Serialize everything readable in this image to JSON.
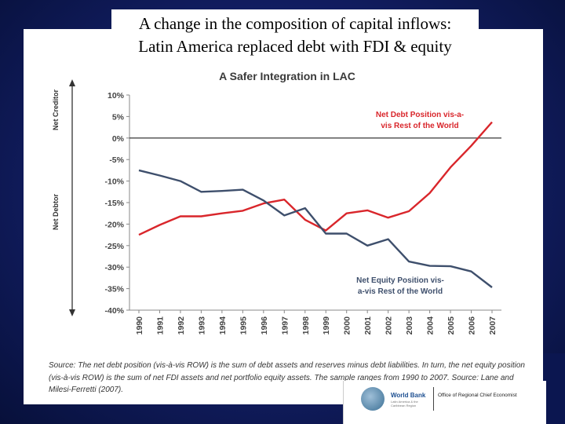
{
  "slide": {
    "title_line1": "A change in the composition of capital inflows:",
    "title_line2": "Latin America replaced debt with FDI & equity"
  },
  "chart_data": {
    "type": "line",
    "title": "A Safer Integration in LAC",
    "x": [
      1990,
      1991,
      1992,
      1993,
      1994,
      1995,
      1996,
      1997,
      1998,
      1999,
      2000,
      2001,
      2002,
      2003,
      2004,
      2005,
      2006,
      2007
    ],
    "yticks": [
      "10%",
      "5%",
      "0%",
      "-5%",
      "-10%",
      "-15%",
      "-20%",
      "-25%",
      "-30%",
      "-35%",
      "-40%"
    ],
    "ylim": [
      -40,
      10
    ],
    "xlim": [
      1990,
      2007
    ],
    "grid": false,
    "zero_line": true,
    "y_axis_labels": {
      "top": "Net Creditor",
      "bottom": "Net Debtor"
    },
    "series": [
      {
        "name": "Net Debt Position vis-a-vis Rest of the World",
        "color": "#d9262b",
        "label_line1": "Net Debt Position vis-a-",
        "label_line2": "vis Rest of the World",
        "values": [
          -22.5,
          -20.2,
          -18.2,
          -18.2,
          -17.5,
          -16.9,
          -15.2,
          -14.3,
          -19.0,
          -21.5,
          -17.5,
          -16.8,
          -18.5,
          -17.0,
          -12.8,
          -6.8,
          -1.8,
          3.7
        ]
      },
      {
        "name": "Net Equity Position vis-a-vis Rest of the World",
        "color": "#3e4f6c",
        "label_line1": "Net Equity Position vis-",
        "label_line2": "a-vis Rest of the World",
        "values": [
          -7.5,
          -8.7,
          -10.0,
          -12.5,
          -12.3,
          -12.0,
          -14.5,
          -18.0,
          -16.3,
          -22.2,
          -22.2,
          -25.0,
          -23.5,
          -28.7,
          -29.7,
          -29.8,
          -31.0,
          -34.7
        ]
      }
    ]
  },
  "source": {
    "line1": "Source: The net debt position (vis-à-vis ROW) is the sum of debt assets and reserves minus debt liabilities. In turn, the net equity position",
    "line2": "(vis-à-vis ROW) is the sum of net FDI assets and net portfolio equity assets. The sample ranges from 1990 to 2007. Source: Lane and",
    "line3": "Milesi-Ferretti (2007)."
  },
  "footer": {
    "logo_name": "World Bank",
    "logo_sub": "Latin America & the Caribbean Region",
    "office": "Office of Regional Chief Economist"
  }
}
